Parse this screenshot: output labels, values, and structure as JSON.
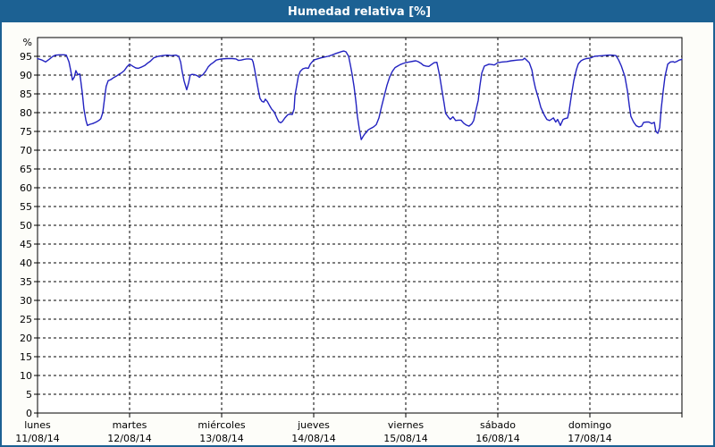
{
  "window": {
    "title": "Humedad relativa [%]"
  },
  "chart_data": {
    "type": "line",
    "title": "Humedad relativa [%]",
    "y_axis": {
      "unit": "%",
      "min": 0,
      "max": 100,
      "tick_step": 5,
      "tick_label_min": 0,
      "tick_label_max": 95,
      "grid": "dashed"
    },
    "x_axis": {
      "hours_total": 168,
      "grid": "day-boundaries-dashed",
      "days": [
        {
          "name": "lunes",
          "date": "11/08/14"
        },
        {
          "name": "martes",
          "date": "12/08/14"
        },
        {
          "name": "miércoles",
          "date": "13/08/14"
        },
        {
          "name": "jueves",
          "date": "14/08/14"
        },
        {
          "name": "viernes",
          "date": "15/08/14"
        },
        {
          "name": "sábado",
          "date": "16/08/14"
        },
        {
          "name": "domingo",
          "date": "17/08/14"
        }
      ]
    },
    "legend": "none",
    "colors": {
      "title_bar": "#1c6193",
      "panel_border": "#1c6193",
      "plot_background": "#ffffff",
      "plot_border": "#000000",
      "grid": "#000000",
      "line": "#2222c0",
      "text": "#000000"
    },
    "series": [
      {
        "name": "Humedad relativa",
        "unit": "%",
        "points": [
          [
            0,
            94.4
          ],
          [
            1.2,
            94.0
          ],
          [
            2.1,
            93.5
          ],
          [
            3,
            94.2
          ],
          [
            4,
            95.0
          ],
          [
            4.7,
            95.3
          ],
          [
            5.8,
            95.4
          ],
          [
            7,
            95.4
          ],
          [
            7.5,
            95.3
          ],
          [
            8.2,
            93.5
          ],
          [
            8.6,
            91.5
          ],
          [
            9.1,
            88.7
          ],
          [
            9.6,
            89.5
          ],
          [
            10,
            91.2
          ],
          [
            10.5,
            90.1
          ],
          [
            11,
            90.3
          ],
          [
            11.2,
            89.0
          ],
          [
            11.7,
            85.0
          ],
          [
            12.1,
            81.0
          ],
          [
            12.6,
            78.0
          ],
          [
            13,
            76.6
          ],
          [
            13.7,
            76.9
          ],
          [
            14.4,
            77.1
          ],
          [
            15.1,
            77.4
          ],
          [
            15.6,
            77.7
          ],
          [
            16.1,
            78.0
          ],
          [
            16.5,
            78.4
          ],
          [
            17,
            80.0
          ],
          [
            17.5,
            84.0
          ],
          [
            17.9,
            87.0
          ],
          [
            18.4,
            88.5
          ],
          [
            19.1,
            88.8
          ],
          [
            19.8,
            89.3
          ],
          [
            20.5,
            89.7
          ],
          [
            21.2,
            90.2
          ],
          [
            21.9,
            90.6
          ],
          [
            22.6,
            91.2
          ],
          [
            23.3,
            92.2
          ],
          [
            24,
            92.9
          ],
          [
            24.9,
            92.3
          ],
          [
            25.6,
            91.9
          ],
          [
            26.3,
            91.8
          ],
          [
            27,
            92.1
          ],
          [
            28,
            92.6
          ],
          [
            28.7,
            93.2
          ],
          [
            29.4,
            93.7
          ],
          [
            30.3,
            94.6
          ],
          [
            31.5,
            95.0
          ],
          [
            32.6,
            95.2
          ],
          [
            33.8,
            95.3
          ],
          [
            34.9,
            95.2
          ],
          [
            36.1,
            95.3
          ],
          [
            36.8,
            95.0
          ],
          [
            37.3,
            93.5
          ],
          [
            37.7,
            91.0
          ],
          [
            38.2,
            88.5
          ],
          [
            38.9,
            86.1
          ],
          [
            39.4,
            88.0
          ],
          [
            39.8,
            90.0
          ],
          [
            40.3,
            90.2
          ],
          [
            41,
            90.1
          ],
          [
            41.7,
            89.8
          ],
          [
            42.2,
            89.4
          ],
          [
            42.6,
            89.8
          ],
          [
            43.1,
            90.1
          ],
          [
            43.8,
            91.0
          ],
          [
            44.5,
            92.2
          ],
          [
            45.2,
            92.9
          ],
          [
            45.9,
            93.4
          ],
          [
            46.6,
            94.0
          ],
          [
            47.3,
            94.2
          ],
          [
            48,
            94.3
          ],
          [
            49.4,
            94.4
          ],
          [
            50.8,
            94.4
          ],
          [
            51.7,
            94.3
          ],
          [
            52.4,
            93.9
          ],
          [
            53.1,
            94.0
          ],
          [
            53.8,
            94.2
          ],
          [
            54.5,
            94.3
          ],
          [
            55.2,
            94.3
          ],
          [
            55.9,
            94.2
          ],
          [
            56.2,
            93.5
          ],
          [
            56.6,
            91.5
          ],
          [
            57.1,
            88.5
          ],
          [
            57.6,
            85.8
          ],
          [
            58,
            83.8
          ],
          [
            58.5,
            83.0
          ],
          [
            59,
            82.8
          ],
          [
            59.4,
            83.6
          ],
          [
            59.9,
            83.0
          ],
          [
            60.6,
            81.7
          ],
          [
            61,
            81.0
          ],
          [
            61.7,
            80.2
          ],
          [
            62.4,
            78.6
          ],
          [
            62.9,
            77.6
          ],
          [
            63.4,
            77.3
          ],
          [
            63.8,
            77.6
          ],
          [
            64.5,
            78.6
          ],
          [
            65.2,
            79.4
          ],
          [
            65.7,
            79.6
          ],
          [
            66.4,
            79.5
          ],
          [
            66.9,
            81.0
          ],
          [
            67.1,
            84.5
          ],
          [
            67.6,
            87.3
          ],
          [
            68,
            89.7
          ],
          [
            68.5,
            91.0
          ],
          [
            69.2,
            91.7
          ],
          [
            69.9,
            91.9
          ],
          [
            70.6,
            91.8
          ],
          [
            71.1,
            92.9
          ],
          [
            71.5,
            93.4
          ],
          [
            72,
            94.0
          ],
          [
            72.9,
            94.3
          ],
          [
            73.9,
            94.6
          ],
          [
            74.8,
            94.8
          ],
          [
            75.7,
            95.0
          ],
          [
            76.7,
            95.3
          ],
          [
            77.6,
            95.7
          ],
          [
            78.5,
            96.0
          ],
          [
            79.4,
            96.3
          ],
          [
            79.9,
            96.4
          ],
          [
            80.4,
            96.2
          ],
          [
            81.1,
            95.0
          ],
          [
            81.6,
            92.5
          ],
          [
            82,
            90.3
          ],
          [
            82.5,
            87.0
          ],
          [
            83,
            83.0
          ],
          [
            83.4,
            79.0
          ],
          [
            83.9,
            75.5
          ],
          [
            84.4,
            72.8
          ],
          [
            84.8,
            73.5
          ],
          [
            85.3,
            74.3
          ],
          [
            85.8,
            74.8
          ],
          [
            86.2,
            75.4
          ],
          [
            86.9,
            75.8
          ],
          [
            87.6,
            76.2
          ],
          [
            88.3,
            76.8
          ],
          [
            89,
            78.6
          ],
          [
            89.7,
            81.7
          ],
          [
            90.4,
            84.5
          ],
          [
            91.1,
            87.3
          ],
          [
            91.8,
            89.5
          ],
          [
            92.5,
            91.0
          ],
          [
            93.2,
            92.0
          ],
          [
            93.9,
            92.4
          ],
          [
            94.6,
            92.8
          ],
          [
            95.3,
            93.1
          ],
          [
            96,
            93.3
          ],
          [
            96.9,
            93.5
          ],
          [
            97.9,
            93.7
          ],
          [
            98.6,
            93.8
          ],
          [
            99.2,
            93.6
          ],
          [
            99.9,
            93.2
          ],
          [
            100.6,
            92.6
          ],
          [
            101.3,
            92.4
          ],
          [
            102,
            92.3
          ],
          [
            102.7,
            92.8
          ],
          [
            103.4,
            93.3
          ],
          [
            104.1,
            93.4
          ],
          [
            104.8,
            90.0
          ],
          [
            105.5,
            85.5
          ],
          [
            106,
            82.5
          ],
          [
            106.4,
            79.8
          ],
          [
            107.1,
            78.8
          ],
          [
            107.6,
            78.2
          ],
          [
            108.3,
            78.9
          ],
          [
            109,
            77.9
          ],
          [
            109.7,
            78.0
          ],
          [
            110.4,
            78.0
          ],
          [
            111.1,
            77.2
          ],
          [
            111.8,
            76.7
          ],
          [
            112.5,
            76.4
          ],
          [
            113.2,
            77.0
          ],
          [
            113.7,
            77.9
          ],
          [
            114.2,
            80.2
          ],
          [
            114.9,
            83.3
          ],
          [
            115.3,
            86.9
          ],
          [
            115.8,
            90.5
          ],
          [
            116.5,
            92.4
          ],
          [
            117.2,
            92.7
          ],
          [
            117.7,
            92.9
          ],
          [
            118.4,
            92.8
          ],
          [
            119.1,
            92.7
          ],
          [
            120,
            93.3
          ],
          [
            121.2,
            93.5
          ],
          [
            122.3,
            93.6
          ],
          [
            123.5,
            93.8
          ],
          [
            125.1,
            94.0
          ],
          [
            126.5,
            94.1
          ],
          [
            127,
            94.5
          ],
          [
            127.7,
            93.8
          ],
          [
            128.2,
            93.3
          ],
          [
            128.9,
            91.3
          ],
          [
            129.3,
            88.9
          ],
          [
            129.8,
            86.5
          ],
          [
            130.5,
            84.1
          ],
          [
            131.2,
            81.4
          ],
          [
            132.1,
            79.4
          ],
          [
            132.8,
            78.2
          ],
          [
            133.5,
            77.9
          ],
          [
            134.5,
            78.6
          ],
          [
            135.1,
            77.5
          ],
          [
            135.6,
            78.2
          ],
          [
            136.3,
            76.6
          ],
          [
            137,
            78.2
          ],
          [
            137.5,
            78.4
          ],
          [
            138.2,
            78.6
          ],
          [
            138.6,
            80.5
          ],
          [
            139.1,
            84.1
          ],
          [
            139.8,
            88.5
          ],
          [
            140.5,
            91.5
          ],
          [
            141,
            93.0
          ],
          [
            141.7,
            93.8
          ],
          [
            142.4,
            94.2
          ],
          [
            143.1,
            94.4
          ],
          [
            144,
            94.5
          ],
          [
            145.2,
            95.0
          ],
          [
            146.3,
            95.1
          ],
          [
            147.5,
            95.2
          ],
          [
            148.7,
            95.3
          ],
          [
            149.8,
            95.3
          ],
          [
            150.8,
            95.2
          ],
          [
            151.5,
            94.0
          ],
          [
            152.2,
            92.4
          ],
          [
            153.1,
            89.7
          ],
          [
            153.8,
            85.7
          ],
          [
            154.3,
            81.7
          ],
          [
            154.7,
            79.0
          ],
          [
            155.4,
            77.5
          ],
          [
            156.1,
            76.5
          ],
          [
            156.8,
            76.2
          ],
          [
            157.5,
            76.4
          ],
          [
            158,
            77.4
          ],
          [
            158.7,
            77.5
          ],
          [
            159.4,
            77.5
          ],
          [
            160.1,
            77.1
          ],
          [
            160.8,
            77.4
          ],
          [
            161.2,
            75.0
          ],
          [
            161.7,
            74.5
          ],
          [
            162.2,
            76.0
          ],
          [
            162.6,
            81.0
          ],
          [
            163.1,
            85.7
          ],
          [
            163.6,
            89.7
          ],
          [
            164.3,
            92.9
          ],
          [
            165,
            93.5
          ],
          [
            165.7,
            93.6
          ],
          [
            166.1,
            93.4
          ],
          [
            166.6,
            93.6
          ],
          [
            167.3,
            94.0
          ],
          [
            168,
            94.2
          ]
        ]
      }
    ]
  }
}
